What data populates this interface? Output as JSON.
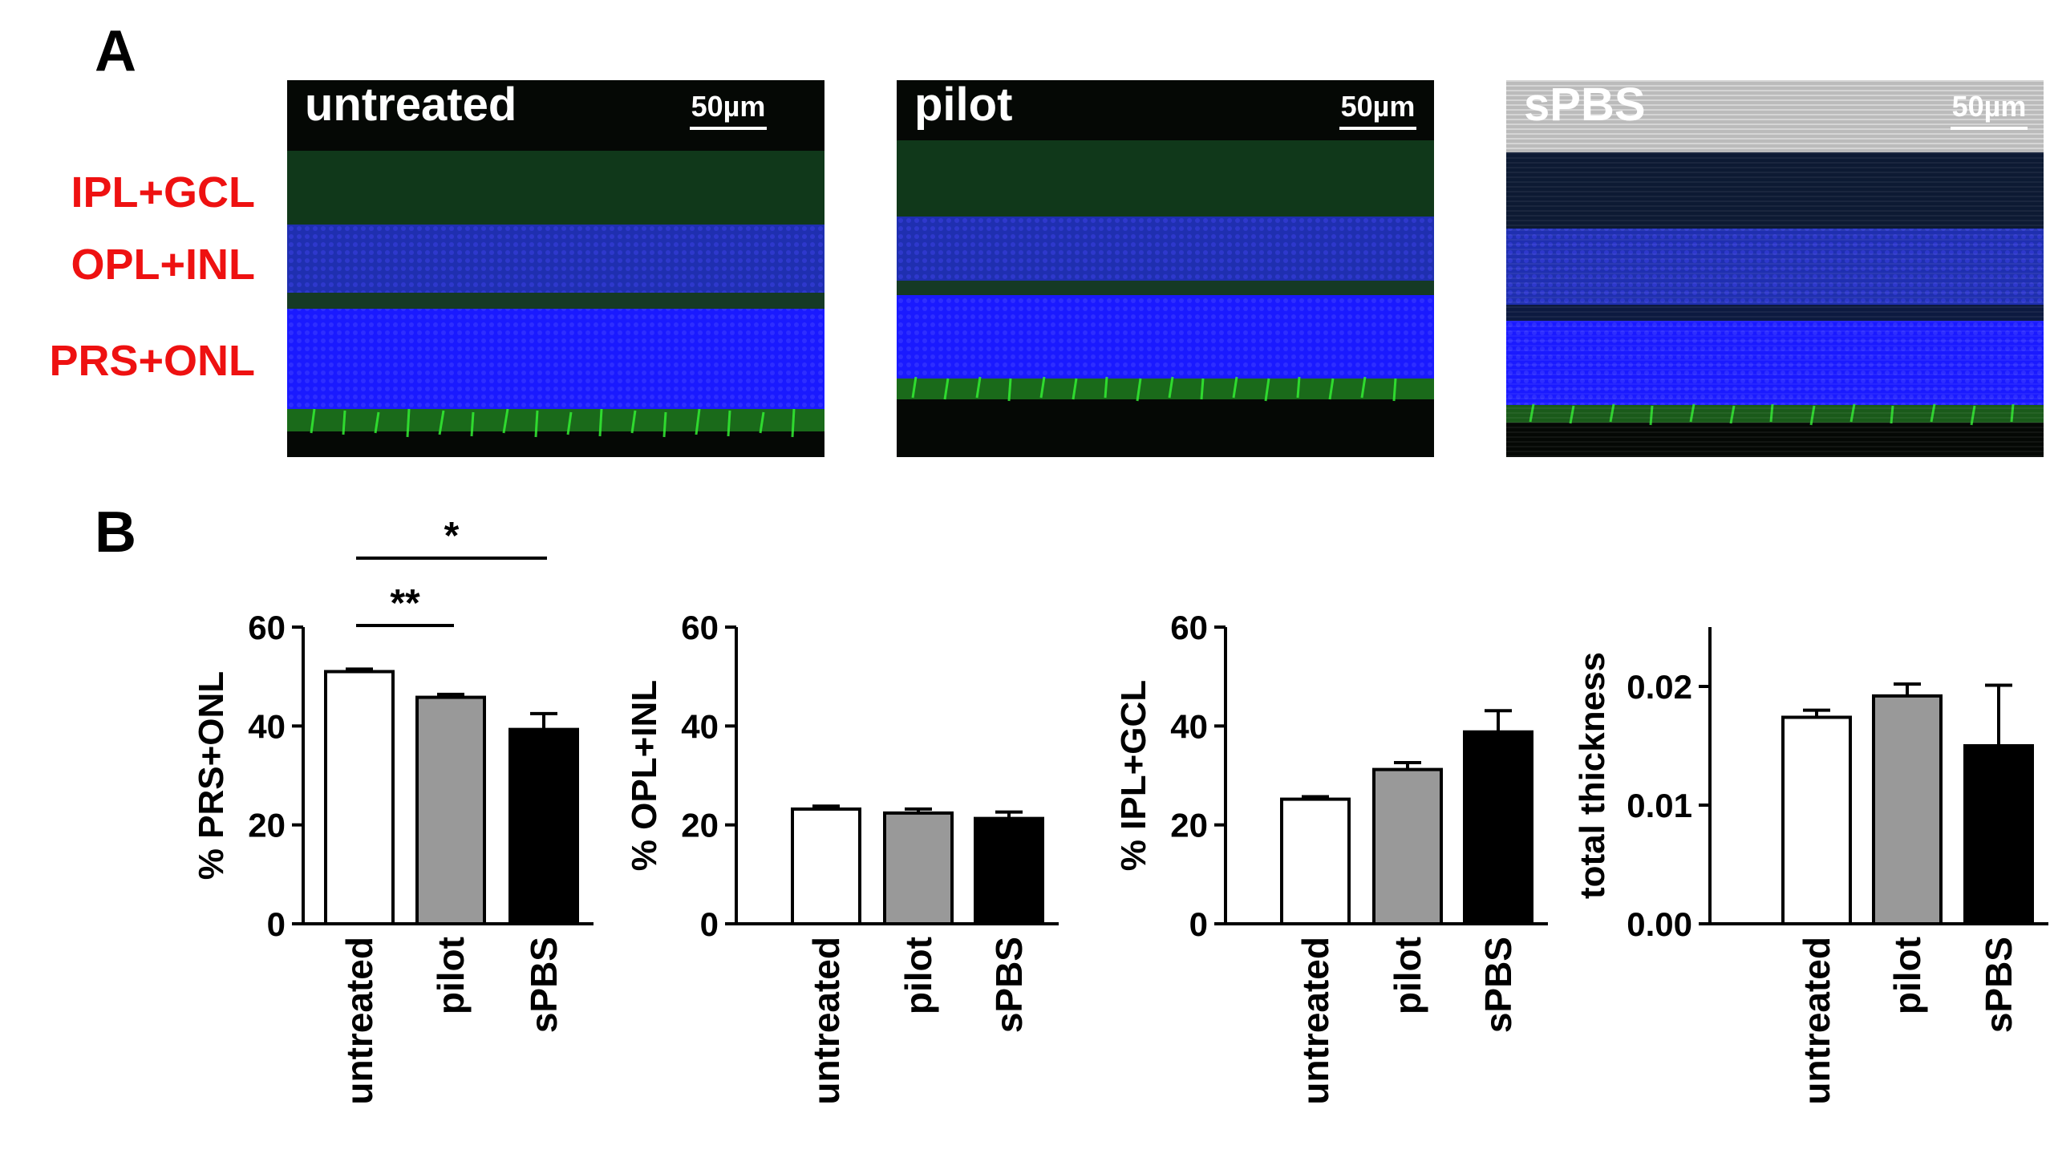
{
  "panel_a_label": "A",
  "panel_b_label": "B",
  "micrographs": [
    {
      "label": "untreated",
      "scale_bar": "50µm"
    },
    {
      "label": "pilot",
      "scale_bar": "50µm"
    },
    {
      "label": "sPBS",
      "scale_bar": "50µm"
    }
  ],
  "layer_labels": [
    "IPL+GCL",
    "OPL+INL",
    "PRS+ONL"
  ],
  "colors": {
    "untreated": "#ffffff",
    "pilot": "#999999",
    "sPBS": "#000000",
    "layer_label": "#ee1111",
    "nuclei": "#1a1aff",
    "photoreceptor": "#33dd33"
  },
  "chart_data": [
    {
      "type": "bar",
      "categories": [
        "untreated",
        "pilot",
        "sPBS"
      ],
      "values": [
        51,
        45.8,
        39.3
      ],
      "errors": [
        0.5,
        0.6,
        3.2
      ],
      "title": "",
      "xlabel": "",
      "ylabel": "% PRS+ONL",
      "ylim": [
        0,
        60
      ],
      "yticks": [
        0,
        20,
        40,
        60
      ],
      "yticklabels": [
        "0",
        "20",
        "40",
        "60"
      ],
      "significance": [
        {
          "from": "untreated",
          "to": "pilot",
          "label": "**"
        },
        {
          "from": "untreated",
          "to": "sPBS",
          "label": "*"
        }
      ]
    },
    {
      "type": "bar",
      "categories": [
        "untreated",
        "pilot",
        "sPBS"
      ],
      "values": [
        23.2,
        22.4,
        21.3
      ],
      "errors": [
        0.6,
        0.8,
        1.3
      ],
      "title": "",
      "xlabel": "",
      "ylabel": "% OPL+INL",
      "ylim": [
        0,
        60
      ],
      "yticks": [
        0,
        20,
        40,
        60
      ],
      "yticklabels": [
        "0",
        "20",
        "40",
        "60"
      ],
      "significance": []
    },
    {
      "type": "bar",
      "categories": [
        "untreated",
        "pilot",
        "sPBS"
      ],
      "values": [
        25.2,
        31.2,
        38.8
      ],
      "errors": [
        0.5,
        1.4,
        4.3
      ],
      "title": "",
      "xlabel": "",
      "ylabel": "% IPL+GCL",
      "ylim": [
        0,
        60
      ],
      "yticks": [
        0,
        20,
        40,
        60
      ],
      "yticklabels": [
        "0",
        "20",
        "40",
        "60"
      ],
      "significance": []
    },
    {
      "type": "bar",
      "categories": [
        "untreated",
        "pilot",
        "sPBS"
      ],
      "values": [
        0.0174,
        0.0192,
        0.015
      ],
      "errors": [
        0.0006,
        0.001,
        0.0051
      ],
      "title": "",
      "xlabel": "",
      "ylabel": "total thickness",
      "ylim": [
        0,
        0.025
      ],
      "yticks": [
        0,
        0.01,
        0.02
      ],
      "yticklabels": [
        "0.00",
        "0.01",
        "0.02"
      ],
      "significance": []
    }
  ]
}
